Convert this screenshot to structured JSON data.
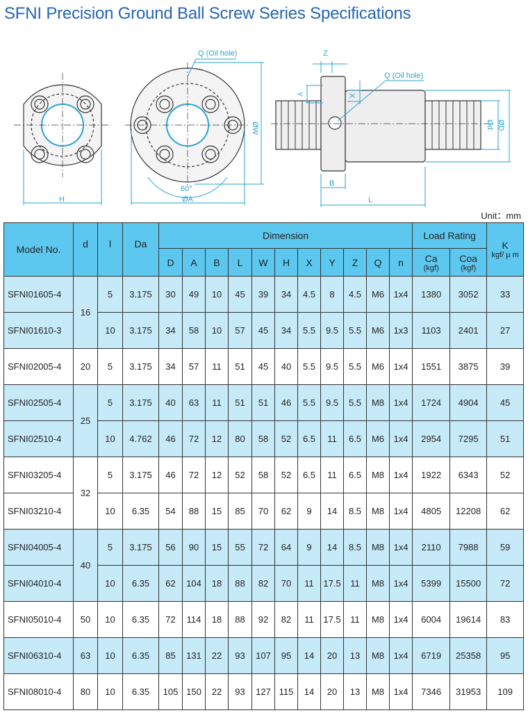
{
  "title": "SFNI Precision Ground Ball Screw Series Specifications",
  "unit": "Unit：mm",
  "drawing": {
    "oil_hole_label_front": "Q (Oil hole)",
    "oil_hole_label_side": "Q (Oil hole)",
    "h": "H",
    "a": "ØA",
    "w": "ØW",
    "angle": "60°",
    "z": "Z",
    "y": "Y",
    "x": "X",
    "b": "B",
    "l": "L",
    "d_small": "Ød",
    "d_big": "ØD"
  },
  "colors": {
    "header": "#5cc8f0",
    "row_highlight": "#c6eaf8",
    "title": "#2566b0",
    "dimension_lines": "#2aa3cf"
  },
  "table": {
    "headers": {
      "model": "Model No.",
      "d": "d",
      "l": "l",
      "da": "Da",
      "dimension": "Dimension",
      "load_rating": "Load Rating",
      "k": "K",
      "k_unit": "kgf/ μ m",
      "dims": [
        "D",
        "A",
        "B",
        "L",
        "W",
        "H",
        "X",
        "Y",
        "Z",
        "Q",
        "n"
      ],
      "ca": "Ca",
      "coa": "Coa",
      "kgf": "(kgf)"
    },
    "rows": [
      {
        "model": "SFNI01605-4",
        "d": "16",
        "l": "5",
        "da": "3.175",
        "dims": [
          "30",
          "49",
          "10",
          "45",
          "39",
          "34",
          "4.5",
          "8",
          "4.5",
          "M6",
          "1x4"
        ],
        "ca": "1380",
        "coa": "3052",
        "k": "33",
        "highlight": true
      },
      {
        "model": "SFNI01610-3",
        "d": "16",
        "l": "10",
        "da": "3.175",
        "dims": [
          "34",
          "58",
          "10",
          "57",
          "45",
          "34",
          "5.5",
          "9.5",
          "5.5",
          "M6",
          "1x3"
        ],
        "ca": "1103",
        "coa": "2401",
        "k": "27",
        "highlight": true
      },
      {
        "model": "SFNI02005-4",
        "d": "20",
        "l": "5",
        "da": "3.175",
        "dims": [
          "34",
          "57",
          "11",
          "51",
          "45",
          "40",
          "5.5",
          "9.5",
          "5.5",
          "M6",
          "1x4"
        ],
        "ca": "1551",
        "coa": "3875",
        "k": "39",
        "highlight": false
      },
      {
        "model": "SFNI02505-4",
        "d": "25",
        "l": "5",
        "da": "3.175",
        "dims": [
          "40",
          "63",
          "11",
          "51",
          "51",
          "46",
          "5.5",
          "9.5",
          "5.5",
          "M8",
          "1x4"
        ],
        "ca": "1724",
        "coa": "4904",
        "k": "45",
        "highlight": true
      },
      {
        "model": "SFNI02510-4",
        "d": "25",
        "l": "10",
        "da": "4.762",
        "dims": [
          "46",
          "72",
          "12",
          "80",
          "58",
          "52",
          "6.5",
          "11",
          "6.5",
          "M6",
          "1x4"
        ],
        "ca": "2954",
        "coa": "7295",
        "k": "51",
        "highlight": true
      },
      {
        "model": "SFNI03205-4",
        "d": "32",
        "l": "5",
        "da": "3.175",
        "dims": [
          "46",
          "72",
          "12",
          "52",
          "58",
          "52",
          "6.5",
          "11",
          "6.5",
          "M8",
          "1x4"
        ],
        "ca": "1922",
        "coa": "6343",
        "k": "52",
        "highlight": false
      },
      {
        "model": "SFNI03210-4",
        "d": "32",
        "l": "10",
        "da": "6.35",
        "dims": [
          "54",
          "88",
          "15",
          "85",
          "70",
          "62",
          "9",
          "14",
          "8.5",
          "M8",
          "1x4"
        ],
        "ca": "4805",
        "coa": "12208",
        "k": "62",
        "highlight": false
      },
      {
        "model": "SFNI04005-4",
        "d": "40",
        "l": "5",
        "da": "3.175",
        "dims": [
          "56",
          "90",
          "15",
          "55",
          "72",
          "64",
          "9",
          "14",
          "8.5",
          "M8",
          "1x4"
        ],
        "ca": "2110",
        "coa": "7988",
        "k": "59",
        "highlight": true
      },
      {
        "model": "SFNI04010-4",
        "d": "40",
        "l": "10",
        "da": "6.35",
        "dims": [
          "62",
          "104",
          "18",
          "88",
          "82",
          "70",
          "11",
          "17.5",
          "11",
          "M8",
          "1x4"
        ],
        "ca": "5399",
        "coa": "15500",
        "k": "72",
        "highlight": true
      },
      {
        "model": "SFNI05010-4",
        "d": "50",
        "l": "10",
        "da": "6.35",
        "dims": [
          "72",
          "114",
          "18",
          "88",
          "92",
          "82",
          "11",
          "17.5",
          "11",
          "M8",
          "1x4"
        ],
        "ca": "6004",
        "coa": "19614",
        "k": "83",
        "highlight": false
      },
      {
        "model": "SFNI06310-4",
        "d": "63",
        "l": "10",
        "da": "6.35",
        "dims": [
          "85",
          "131",
          "22",
          "93",
          "107",
          "95",
          "14",
          "20",
          "13",
          "M8",
          "1x4"
        ],
        "ca": "6719",
        "coa": "25358",
        "k": "95",
        "highlight": true
      },
      {
        "model": "SFNI08010-4",
        "d": "80",
        "l": "10",
        "da": "6.35",
        "dims": [
          "105",
          "150",
          "22",
          "93",
          "127",
          "115",
          "14",
          "20",
          "13",
          "M8",
          "1x4"
        ],
        "ca": "7346",
        "coa": "31953",
        "k": "109",
        "highlight": false
      }
    ]
  }
}
